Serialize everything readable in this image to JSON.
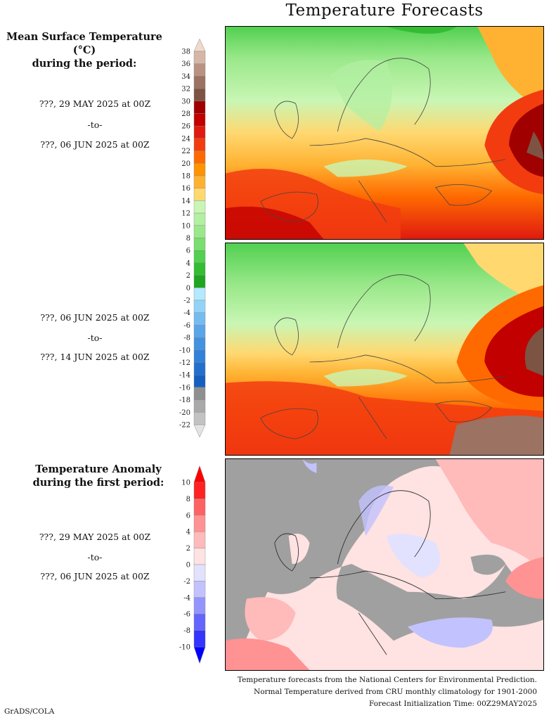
{
  "title": "Temperature Forecasts",
  "mean_temp_legend": {
    "heading_line1": "Mean Surface Temperature (°C)",
    "heading_line2": "during the period:",
    "period1": {
      "from": "???, 29 MAY 2025 at 00Z",
      "sep": "-to-",
      "to": "???, 06 JUN 2025 at 00Z"
    },
    "period2": {
      "from": "???, 06 JUN 2025 at 00Z",
      "sep": "-to-",
      "to": "???, 14 JUN 2025 at 00Z"
    },
    "levels": [
      38,
      36,
      34,
      32,
      30,
      28,
      26,
      24,
      22,
      20,
      18,
      16,
      14,
      12,
      10,
      8,
      6,
      4,
      2,
      0,
      -2,
      -4,
      -6,
      -8,
      -10,
      -12,
      -14,
      -16,
      -18,
      -20,
      -22
    ],
    "colors": [
      "#d6b6a6",
      "#b99282",
      "#9c7262",
      "#7d5343",
      "#a00000",
      "#c20000",
      "#e01a10",
      "#f23c10",
      "#ff6a00",
      "#ff9400",
      "#ffb232",
      "#ffd870",
      "#c9f6b4",
      "#b2f0a2",
      "#9ae88a",
      "#7ade70",
      "#52d050",
      "#34bd32",
      "#1fa51f",
      "#b4e9ff",
      "#94d3f8",
      "#74bcf0",
      "#5aa5e8",
      "#4392e0",
      "#3281d8",
      "#226fcd",
      "#145fc0",
      "#8f8f8f",
      "#a9a9a9",
      "#c2c2c2"
    ],
    "over_color": "#f0dacb",
    "under_color": "#e4e4e4"
  },
  "anomaly_legend": {
    "heading_line1": "Temperature Anomaly",
    "heading_line2": "during the first period:",
    "period": {
      "from": "???, 29 MAY 2025 at 00Z",
      "sep": "-to-",
      "to": "???, 06 JUN 2025 at 00Z"
    },
    "levels": [
      10,
      8,
      6,
      4,
      2,
      0,
      -2,
      -4,
      -6,
      -8,
      -10
    ],
    "colors": [
      "#ff2222",
      "#ff6262",
      "#ff9292",
      "#ffbaba",
      "#ffe2e2",
      "#e2e2ff",
      "#c2c2ff",
      "#9494ff",
      "#6464ff",
      "#3434ff"
    ],
    "over_color": "#ff0000",
    "under_color": "#0000ff"
  },
  "maps": {
    "sea_color_anomaly": "#a0a0a0"
  },
  "credits": {
    "line1": "Temperature forecasts from the National Centers for Environmental Prediction.",
    "line2": "Normal Temperature derived from CRU monthly climatology for 1901-2000",
    "line3": "Forecast Initialization Time: 00Z29MAY2025",
    "software": "GrADS/COLA"
  }
}
